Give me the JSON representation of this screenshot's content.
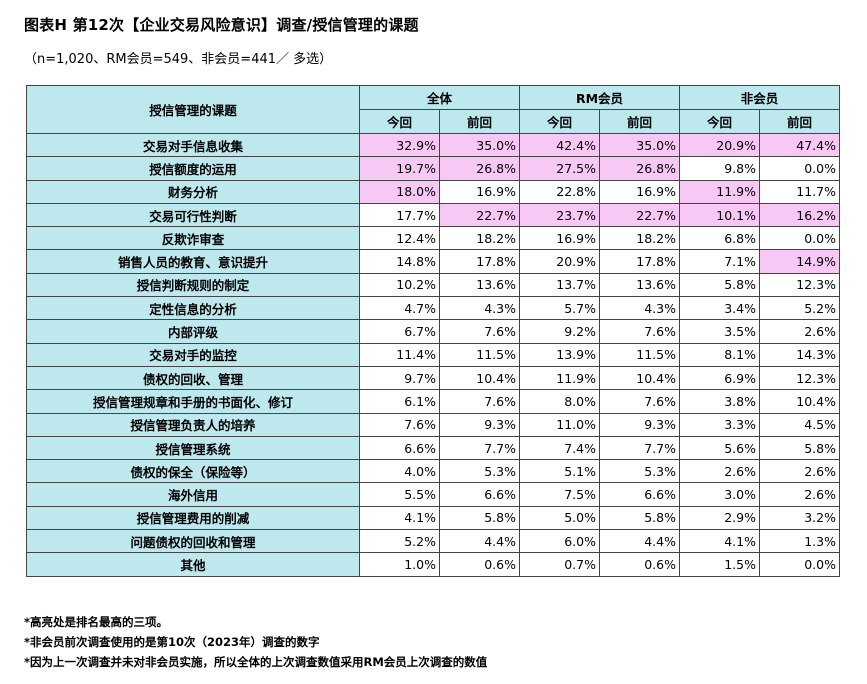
{
  "title": "图表H  第12次【企业交易风险意识】调查/授信管理的课题",
  "subtitle": "（n=1,020、RM会员=549、非会员=441／ 多选）",
  "table": {
    "corner_header": "授信管理的课题",
    "groups": [
      "全体",
      "RM会员",
      "非会员"
    ],
    "subcols": [
      "今回",
      "前回"
    ],
    "highlight_color": "#f7c8f3",
    "header_color": "#bde8ee",
    "rows": [
      {
        "label": "交易对手信息收集",
        "values": [
          "32.9%",
          "35.0%",
          "42.4%",
          "35.0%",
          "20.9%",
          "47.4%"
        ],
        "hl": [
          true,
          true,
          true,
          true,
          true,
          true
        ]
      },
      {
        "label": "授信额度的运用",
        "values": [
          "19.7%",
          "26.8%",
          "27.5%",
          "26.8%",
          "9.8%",
          "0.0%"
        ],
        "hl": [
          true,
          true,
          true,
          true,
          false,
          false
        ]
      },
      {
        "label": "财务分析",
        "values": [
          "18.0%",
          "16.9%",
          "22.8%",
          "16.9%",
          "11.9%",
          "11.7%"
        ],
        "hl": [
          true,
          false,
          false,
          false,
          true,
          false
        ]
      },
      {
        "label": "交易可行性判断",
        "values": [
          "17.7%",
          "22.7%",
          "23.7%",
          "22.7%",
          "10.1%",
          "16.2%"
        ],
        "hl": [
          false,
          true,
          true,
          true,
          true,
          true
        ]
      },
      {
        "label": "反欺诈审查",
        "values": [
          "12.4%",
          "18.2%",
          "16.9%",
          "18.2%",
          "6.8%",
          "0.0%"
        ],
        "hl": [
          false,
          false,
          false,
          false,
          false,
          false
        ]
      },
      {
        "label": "销售人员的教育、意识提升",
        "values": [
          "14.8%",
          "17.8%",
          "20.9%",
          "17.8%",
          "7.1%",
          "14.9%"
        ],
        "hl": [
          false,
          false,
          false,
          false,
          false,
          true
        ]
      },
      {
        "label": "授信判断规则的制定",
        "values": [
          "10.2%",
          "13.6%",
          "13.7%",
          "13.6%",
          "5.8%",
          "12.3%"
        ],
        "hl": [
          false,
          false,
          false,
          false,
          false,
          false
        ]
      },
      {
        "label": "定性信息的分析",
        "values": [
          "4.7%",
          "4.3%",
          "5.7%",
          "4.3%",
          "3.4%",
          "5.2%"
        ],
        "hl": [
          false,
          false,
          false,
          false,
          false,
          false
        ]
      },
      {
        "label": "内部评级",
        "values": [
          "6.7%",
          "7.6%",
          "9.2%",
          "7.6%",
          "3.5%",
          "2.6%"
        ],
        "hl": [
          false,
          false,
          false,
          false,
          false,
          false
        ]
      },
      {
        "label": "交易对手的监控",
        "values": [
          "11.4%",
          "11.5%",
          "13.9%",
          "11.5%",
          "8.1%",
          "14.3%"
        ],
        "hl": [
          false,
          false,
          false,
          false,
          false,
          false
        ]
      },
      {
        "label": "债权的回收、管理",
        "values": [
          "9.7%",
          "10.4%",
          "11.9%",
          "10.4%",
          "6.9%",
          "12.3%"
        ],
        "hl": [
          false,
          false,
          false,
          false,
          false,
          false
        ]
      },
      {
        "label": "授信管理规章和手册的书面化、修订",
        "values": [
          "6.1%",
          "7.6%",
          "8.0%",
          "7.6%",
          "3.8%",
          "10.4%"
        ],
        "hl": [
          false,
          false,
          false,
          false,
          false,
          false
        ]
      },
      {
        "label": "授信管理负责人的培养",
        "values": [
          "7.6%",
          "9.3%",
          "11.0%",
          "9.3%",
          "3.3%",
          "4.5%"
        ],
        "hl": [
          false,
          false,
          false,
          false,
          false,
          false
        ]
      },
      {
        "label": "授信管理系统",
        "values": [
          "6.6%",
          "7.7%",
          "7.4%",
          "7.7%",
          "5.6%",
          "5.8%"
        ],
        "hl": [
          false,
          false,
          false,
          false,
          false,
          false
        ]
      },
      {
        "label": "债权的保全（保险等）",
        "values": [
          "4.0%",
          "5.3%",
          "5.1%",
          "5.3%",
          "2.6%",
          "2.6%"
        ],
        "hl": [
          false,
          false,
          false,
          false,
          false,
          false
        ]
      },
      {
        "label": "海外信用",
        "values": [
          "5.5%",
          "6.6%",
          "7.5%",
          "6.6%",
          "3.0%",
          "2.6%"
        ],
        "hl": [
          false,
          false,
          false,
          false,
          false,
          false
        ]
      },
      {
        "label": "授信管理费用的削减",
        "values": [
          "4.1%",
          "5.8%",
          "5.0%",
          "5.8%",
          "2.9%",
          "3.2%"
        ],
        "hl": [
          false,
          false,
          false,
          false,
          false,
          false
        ]
      },
      {
        "label": "问题债权的回收和管理",
        "values": [
          "5.2%",
          "4.4%",
          "6.0%",
          "4.4%",
          "4.1%",
          "1.3%"
        ],
        "hl": [
          false,
          false,
          false,
          false,
          false,
          false
        ]
      },
      {
        "label": "其他",
        "values": [
          "1.0%",
          "0.6%",
          "0.7%",
          "0.6%",
          "1.5%",
          "0.0%"
        ],
        "hl": [
          false,
          false,
          false,
          false,
          false,
          false
        ]
      }
    ]
  },
  "notes": [
    "*高亮处是排名最高的三项。",
    "*非会员前次调查使用的是第10次（2023年）调查的数字",
    "*因为上一次调查并未对非会员实施，所以全体的上次调查数值采用RM会员上次调查的数值"
  ]
}
